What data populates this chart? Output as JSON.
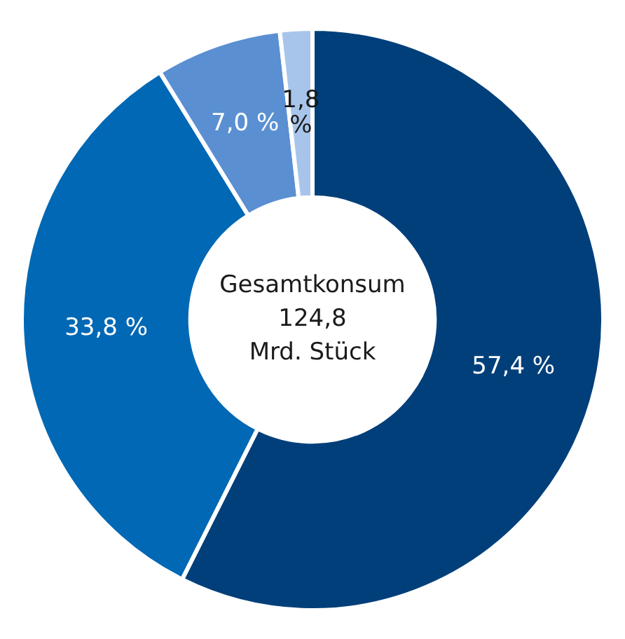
{
  "chart_data": {
    "type": "donut",
    "categories": [
      null,
      null,
      null,
      null
    ],
    "values": [
      57.4,
      33.8,
      7.0,
      1.8
    ],
    "colors": [
      "#003f7a",
      "#0068b4",
      "#5a8fd2",
      "#a7c5ea"
    ],
    "value_labels": [
      "57,4 %",
      "33,8 %",
      "7,0 %",
      "1,8 %"
    ],
    "annotations": [
      "Gesamtkonsum\n124,8\nMrd. Stück"
    ],
    "legend": false
  }
}
